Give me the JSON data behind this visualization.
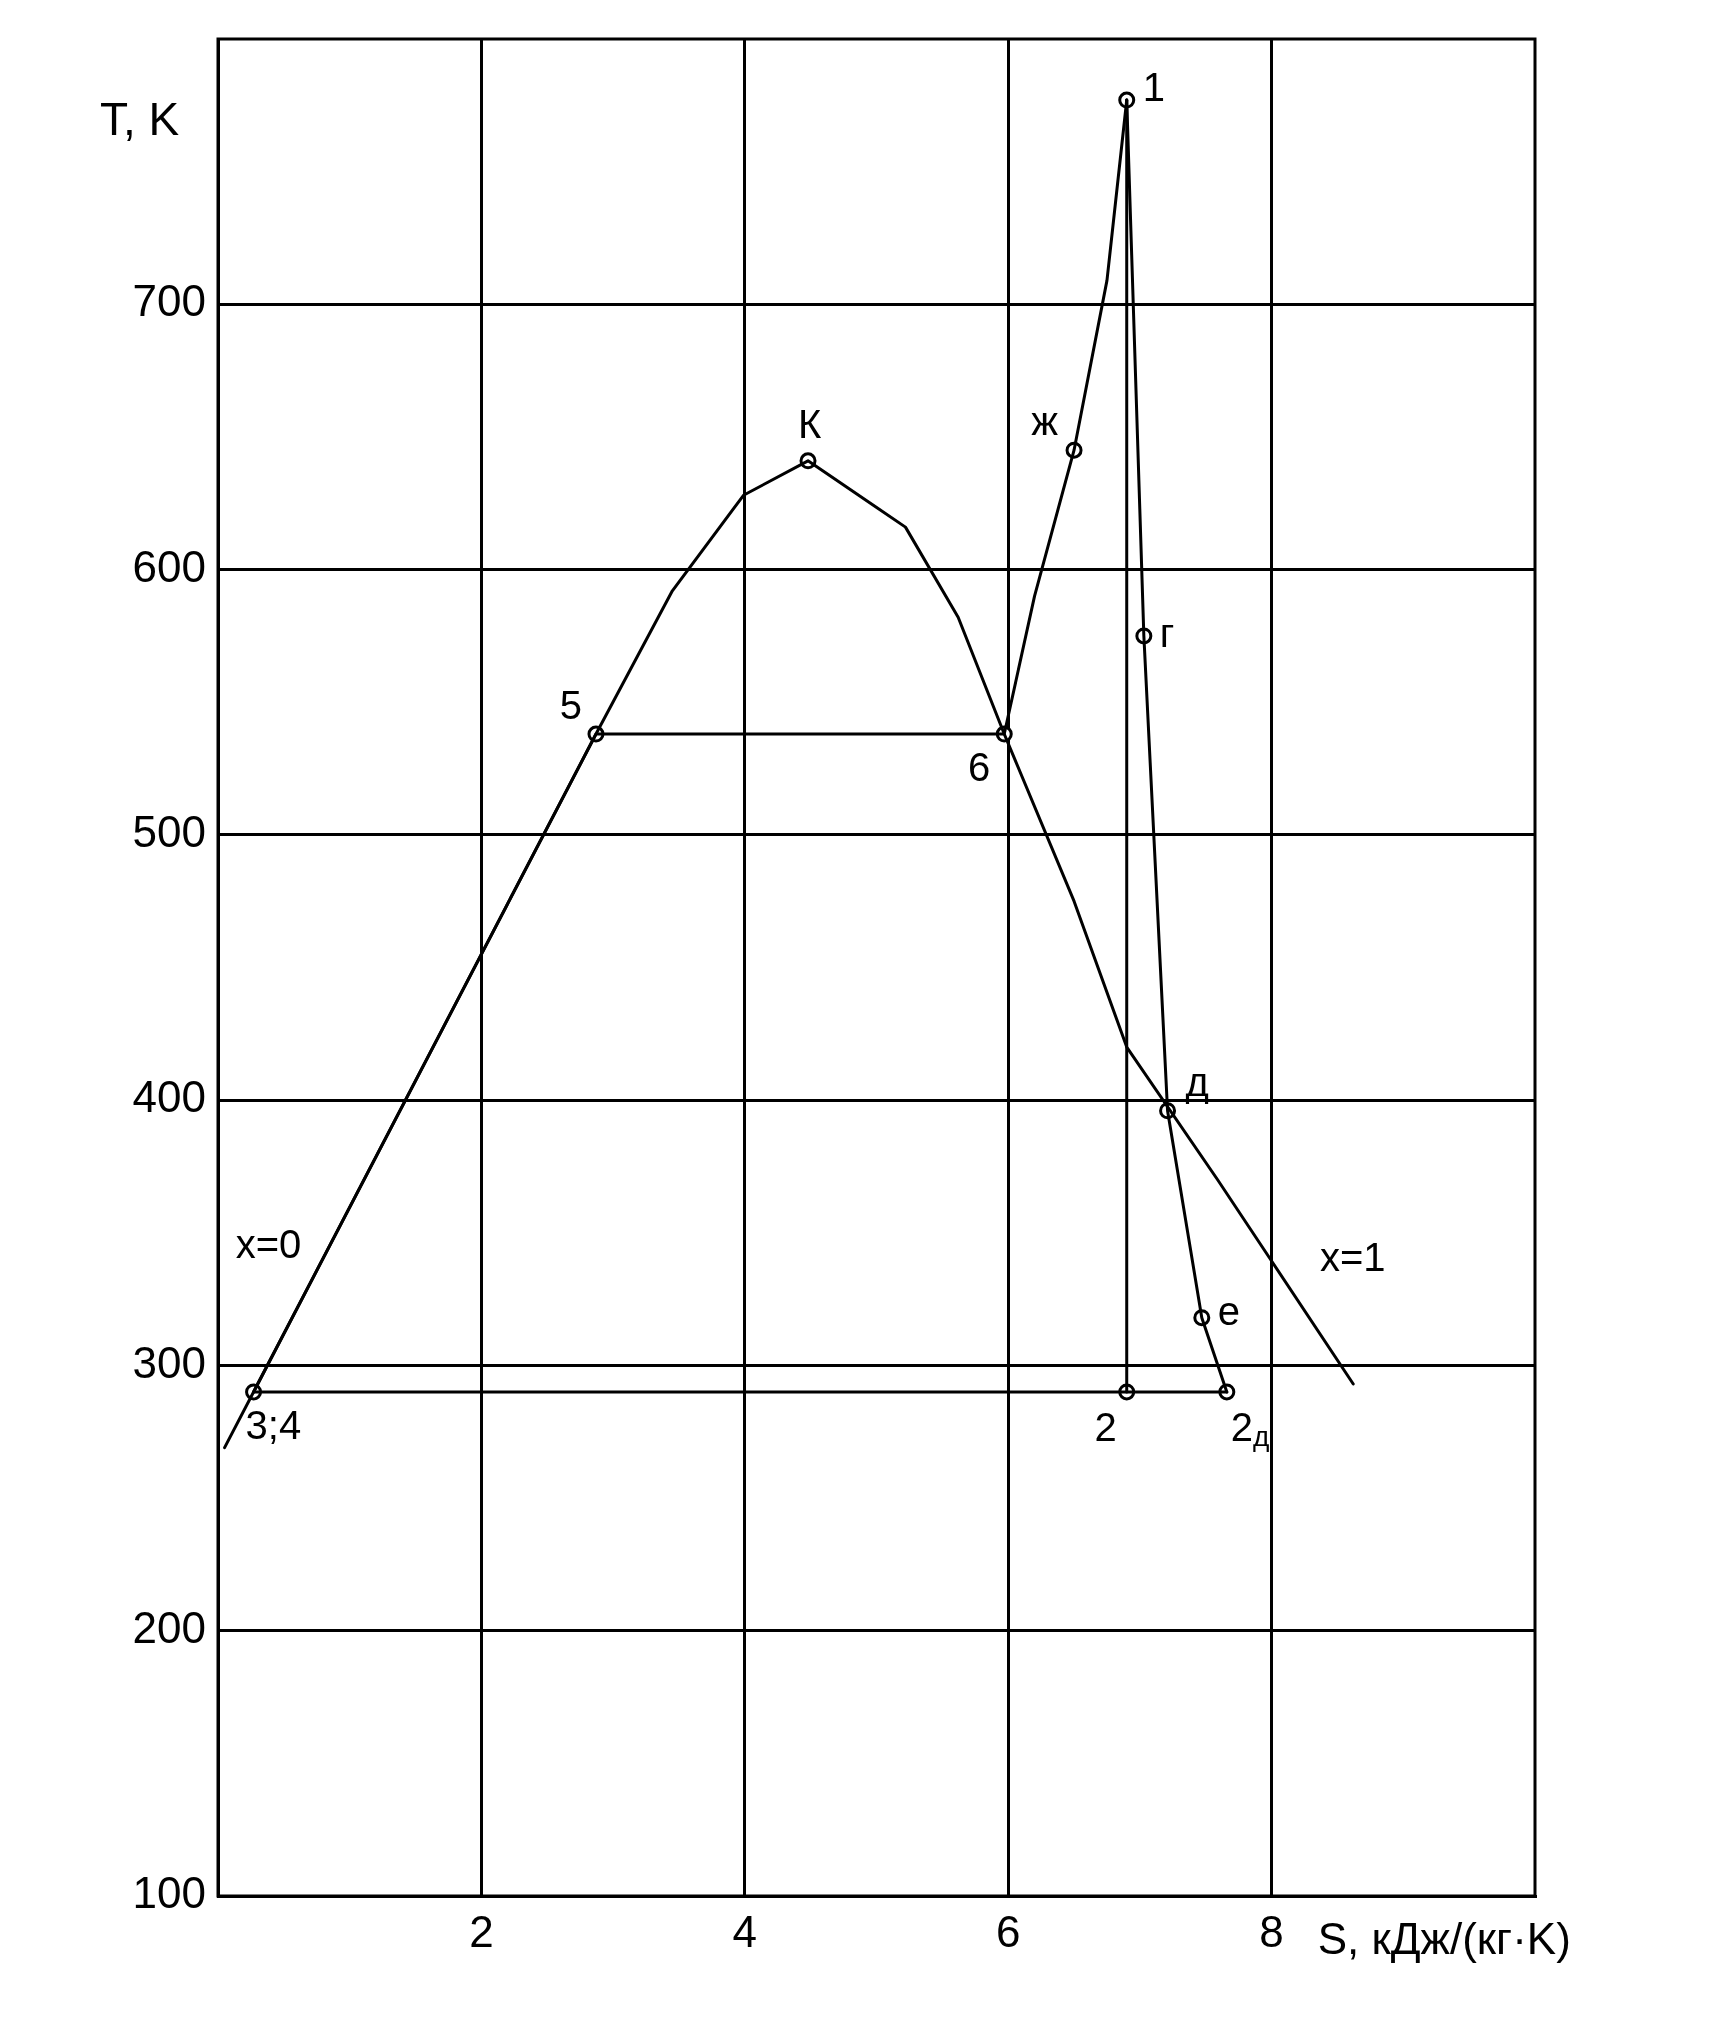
{
  "chart_data": {
    "type": "line",
    "xlabel": "S, кДж/(кг·K)",
    "ylabel": "T, K",
    "xlim": [
      0,
      10
    ],
    "xticks": [
      2,
      4,
      6,
      8
    ],
    "ylim": [
      100,
      800
    ],
    "yticks": [
      100,
      200,
      300,
      400,
      500,
      600,
      700
    ],
    "grid": true,
    "line_style": "solid",
    "marker": "none",
    "series": [
      {
        "color": "#000000",
        "x": [
          0.05,
          0.27,
          2.87,
          3.45,
          3.99,
          4.48,
          5.22,
          5.62,
          5.97,
          6.5,
          6.9,
          7.59,
          8.62
        ],
        "values": [
          269,
          290,
          538,
          592,
          628,
          641,
          616,
          582,
          538,
          475,
          420,
          370,
          293
        ]
      },
      {
        "color": "#000000",
        "x": [
          0.27,
          2.87,
          5.97,
          6.2,
          6.5,
          6.75,
          6.9
        ],
        "values": [
          290,
          538,
          538,
          590,
          645,
          709,
          777
        ]
      },
      {
        "color": "#000000",
        "x": [
          6.9,
          7.03,
          7.21,
          7.47,
          7.66
        ],
        "values": [
          777,
          575,
          396,
          318,
          290
        ]
      },
      {
        "color": "#000000",
        "x": [
          0.27,
          7.66
        ],
        "values": [
          290,
          290
        ]
      },
      {
        "color": "#000000",
        "x": [
          6.9,
          6.9
        ],
        "values": [
          777,
          290
        ]
      },
      {
        "type": "scatter",
        "marker": "circle",
        "color": "#000000",
        "x": [
          0.27,
          2.87,
          4.48,
          5.97,
          6.5,
          6.9,
          7.03,
          7.21,
          7.47,
          6.9,
          7.66
        ],
        "values": [
          290,
          538,
          641,
          538,
          645,
          777,
          575,
          396,
          318,
          290,
          290
        ]
      }
    ],
    "annotations": [
      {
        "text": "3;4",
        "x": 0.27,
        "y": 290
      },
      {
        "text": "5",
        "x": 2.87,
        "y": 538
      },
      {
        "text": "К",
        "x": 4.48,
        "y": 641
      },
      {
        "text": "6",
        "x": 5.97,
        "y": 538
      },
      {
        "text": "ж",
        "x": 6.5,
        "y": 645
      },
      {
        "text": "1",
        "x": 6.9,
        "y": 777
      },
      {
        "text": "г",
        "x": 7.03,
        "y": 575
      },
      {
        "text": "д",
        "x": 7.21,
        "y": 396
      },
      {
        "text": "е",
        "x": 7.47,
        "y": 318
      },
      {
        "text": "2",
        "x": 6.9,
        "y": 290
      },
      {
        "text": "2$_{д}$",
        "x": 7.66,
        "y": 290
      },
      {
        "text": "x=0",
        "x": 0.8,
        "y": 341
      },
      {
        "text": "x=1",
        "x": 8.2,
        "y": 324
      }
    ]
  }
}
